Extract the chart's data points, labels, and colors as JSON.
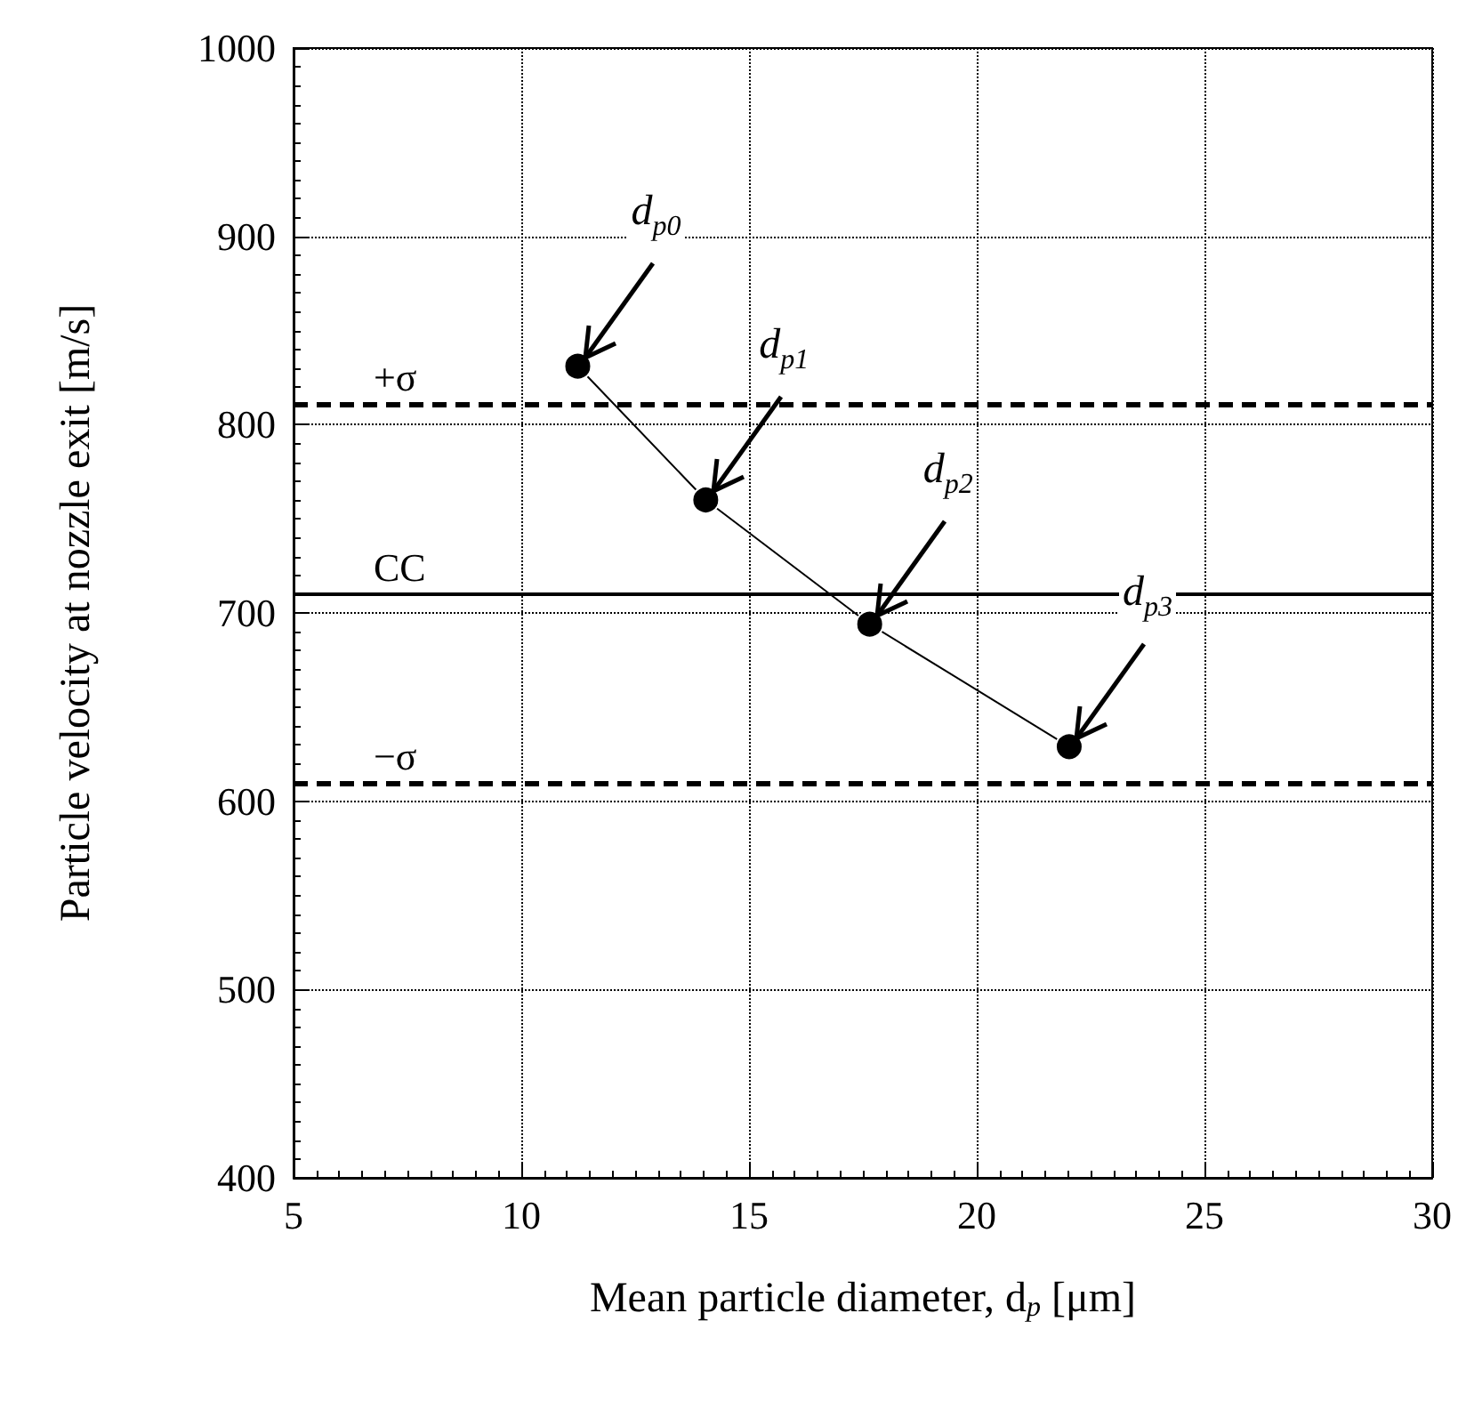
{
  "chart_data": {
    "type": "line",
    "xlabel": "Mean particle diameter, d$_{p}$ [μm]",
    "ylabel": "Particle velocity at nozzle exit [m/s]",
    "x": [
      11.24,
      14.05,
      17.65,
      22.03
    ],
    "series": [
      {
        "color": "#000000",
        "values": [
          831,
          760,
          694,
          629
        ]
      }
    ],
    "xlim": [
      5,
      30
    ],
    "xticks": [
      5,
      10,
      15,
      20,
      25,
      30
    ],
    "ylim": [
      400,
      1000
    ],
    "yticks": [
      400,
      500,
      600,
      700,
      800,
      900,
      1000
    ],
    "grid": true,
    "marker": "circle",
    "line_style": "solid",
    "ref_lines": [
      {
        "axis": "y",
        "value": 811,
        "label": "+σ",
        "line_style": "dashed",
        "color": "#000000"
      },
      {
        "axis": "y",
        "value": 710,
        "label": "CC",
        "line_style": "solid",
        "color": "#000000"
      },
      {
        "axis": "y",
        "value": 610,
        "label": "−σ",
        "line_style": "dashed",
        "color": "#000000"
      }
    ],
    "annotations": [
      {
        "text": "d$_{p0}$",
        "x": 11.24,
        "y": 831
      },
      {
        "text": "d$_{p1}$",
        "x": 14.05,
        "y": 760
      },
      {
        "text": "d$_{p2}$",
        "x": 17.65,
        "y": 694
      },
      {
        "text": "d$_{p3}$",
        "x": 22.03,
        "y": 629
      }
    ]
  }
}
